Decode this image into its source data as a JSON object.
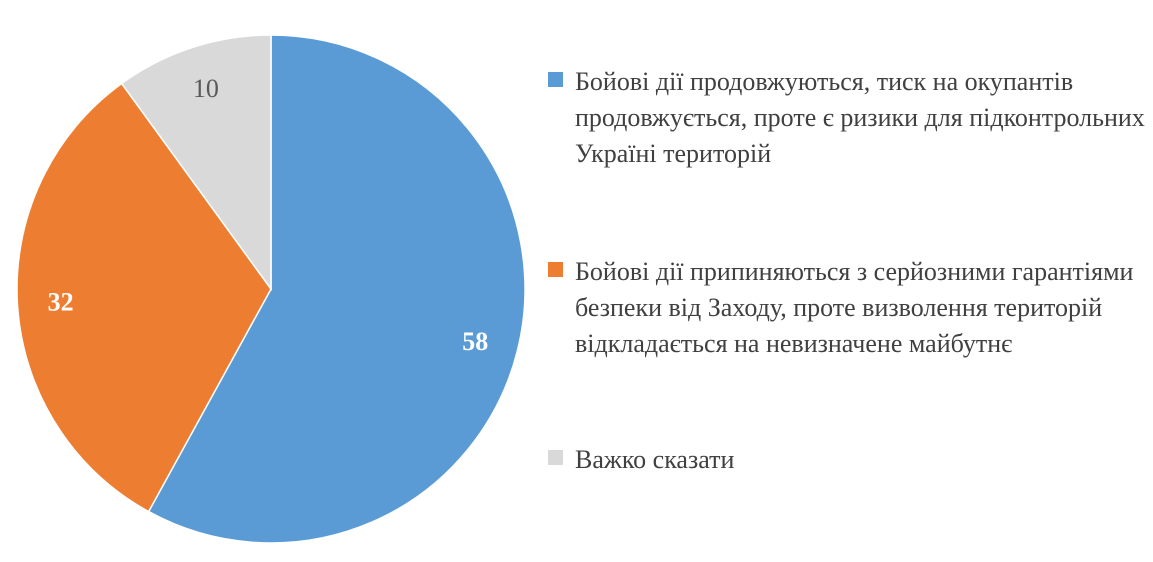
{
  "chart_data": {
    "type": "pie",
    "title": "",
    "legend_position": "right",
    "slices": [
      {
        "label": "Бойові дії продовжуються, тиск на окупантів продовжується, проте є ризики для підконтрольних Україні територій",
        "value": 58,
        "value_label": "58",
        "color": "#5B9BD5",
        "label_color": "#ffffff"
      },
      {
        "label": "Бойові дії припиняються з серйозними гарантіями безпеки від Заходу, проте визволення територій відкладається на невизначене майбутнє",
        "value": 32,
        "value_label": "32",
        "color": "#ED7D31",
        "label_color": "#ffffff"
      },
      {
        "label": "Важко сказати",
        "value": 10,
        "value_label": "10",
        "color": "#D9D9D9",
        "label_color": "#595959"
      }
    ]
  }
}
